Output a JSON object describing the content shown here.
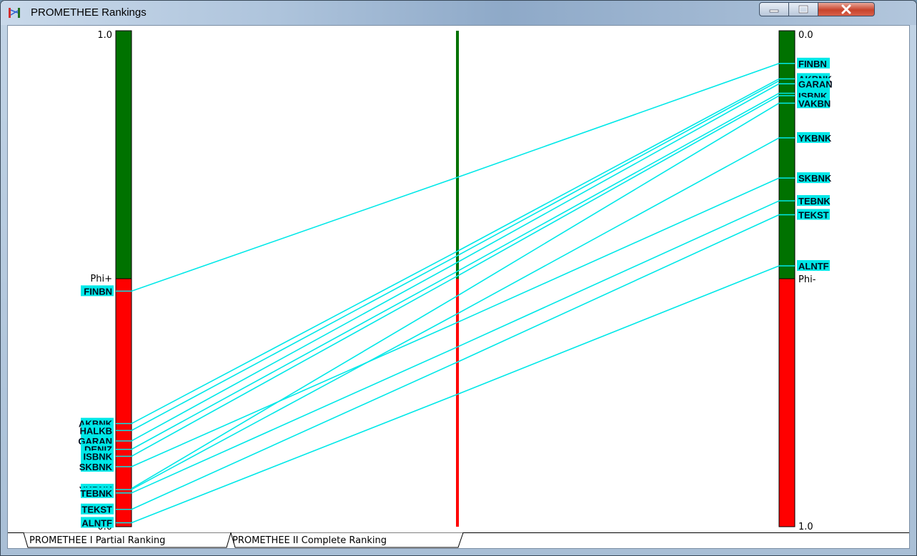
{
  "window": {
    "title": "PROMETHEE Rankings"
  },
  "tabs": [
    {
      "label": "PROMETHEE I Partial Ranking",
      "active": true
    },
    {
      "label": "PROMETHEE II Complete Ranking",
      "active": false
    }
  ],
  "colors": {
    "positive": "#007200",
    "negative": "#ff0000",
    "link": "#00e8e8",
    "label_bg": "#00e8e8"
  },
  "chart_data": {
    "type": "promethee-partial-ranking",
    "left_axis": {
      "name": "Phi+",
      "top_label": "1.0",
      "bottom_label": "0.0",
      "threshold": 0.5
    },
    "right_axis": {
      "name": "Phi-",
      "top_label": "0.0",
      "bottom_label": "1.0",
      "threshold": 0.5
    },
    "middle_axis": {
      "threshold": 0.5
    },
    "alternatives": [
      {
        "name": "FINBN",
        "phi_plus": 0.475,
        "phi_minus": 0.066
      },
      {
        "name": "AKBNK",
        "phi_plus": 0.208,
        "phi_minus": 0.097
      },
      {
        "name": "HALKB",
        "phi_plus": 0.194,
        "phi_minus": 0.101
      },
      {
        "name": "GARAN",
        "phi_plus": 0.173,
        "phi_minus": 0.107
      },
      {
        "name": "DENIZ",
        "phi_plus": 0.156,
        "phi_minus": 0.126
      },
      {
        "name": "ISBNK",
        "phi_plus": 0.142,
        "phi_minus": 0.131
      },
      {
        "name": "SKBNK",
        "phi_plus": 0.121,
        "phi_minus": 0.297
      },
      {
        "name": "YKBNK",
        "phi_plus": 0.075,
        "phi_minus": 0.216
      },
      {
        "name": "TEBNK",
        "phi_plus": 0.068,
        "phi_minus": 0.343
      },
      {
        "name": "VAKBN",
        "phi_plus": 0.077,
        "phi_minus": 0.146
      },
      {
        "name": "TEKST",
        "phi_plus": 0.035,
        "phi_minus": 0.371
      },
      {
        "name": "ALNTF",
        "phi_plus": 0.008,
        "phi_minus": 0.474
      }
    ],
    "left_label_order": [
      "FINBN",
      "AKBNK",
      "HALKB",
      "GARAN",
      "DENIZ",
      "ISBNK",
      "SKBNK",
      "YKBNK",
      "TEBNK",
      "TEKST",
      "ALNTF"
    ],
    "right_label_order": [
      "FINBN",
      "AKBNK",
      "GARAN",
      "DENIZ",
      "ISBNK",
      "VAKBN",
      "YKBNK",
      "SKBNK",
      "TEBNK",
      "TEKST",
      "ALNTF"
    ]
  }
}
